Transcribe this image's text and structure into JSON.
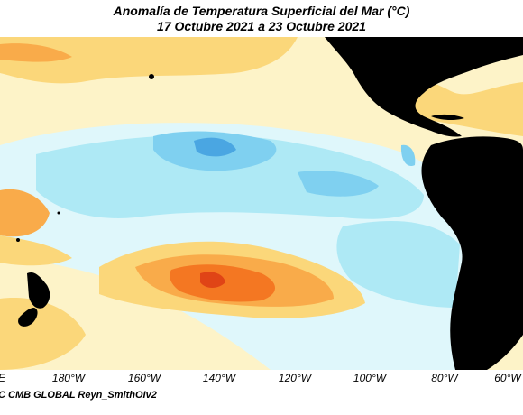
{
  "title": {
    "line1": "Anomalía de Temperatura Superficial del Mar (°C)",
    "line2": "17 Octubre 2021 a 23 Octubre 2021"
  },
  "longitude_ticks": [
    "E",
    "180°W",
    "160°W",
    "140°W",
    "120°W",
    "100°W",
    "80°W",
    "60°W"
  ],
  "credit": "C CMB GLOBAL Reyn_SmithOIv2",
  "colors": {
    "land": "#000000",
    "warm_light": "#fdf3c8",
    "warm": "#fbd77a",
    "warmer": "#f9ab4a",
    "hot": "#f47722",
    "hottest": "#e04416",
    "cool_light": "#dff7fb",
    "cool": "#aee9f5",
    "cooler": "#7fd0f0",
    "coolest": "#4aa6e2"
  }
}
